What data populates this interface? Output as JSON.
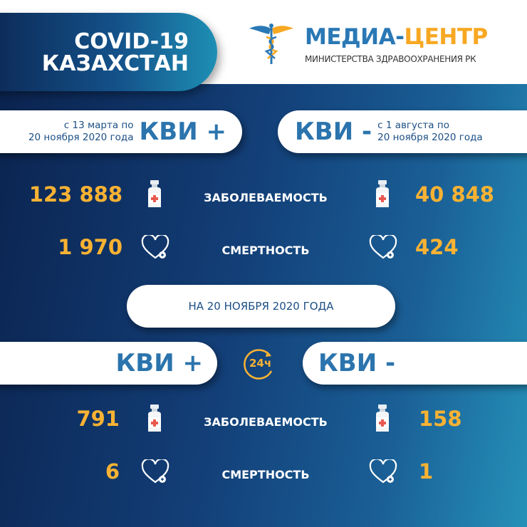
{
  "header": {
    "title_line1": "COVID-19",
    "title_line2": "КАЗАХСТАН",
    "logo_part1": "МЕДИА-",
    "logo_part2": "ЦЕНТР",
    "logo_sub": "МИНИСТЕРСТВА ЗДРАВООХРАНЕНИЯ РК",
    "logo_icon": "caduceus-icon"
  },
  "cumulative": {
    "left": {
      "label": "КВИ +",
      "date_line1": "с 13 марта по",
      "date_line2": "20 ноября 2020 года",
      "cases": "123 888",
      "deaths": "1 970"
    },
    "right": {
      "label": "КВИ -",
      "date_line1": "с 1 августа  по",
      "date_line2": "20 ноября 2020 года",
      "cases": "40 848",
      "deaths": "424"
    },
    "cases_label": "ЗАБОЛЕВАЕМОСТЬ",
    "deaths_label": "СМЕРТНОСТЬ"
  },
  "daily": {
    "date_label": "НА 20 НОЯБРЯ  2020 ГОДА",
    "badge": "24ч",
    "left": {
      "label": "КВИ +",
      "cases": "791",
      "deaths": "6"
    },
    "right": {
      "label": "КВИ -",
      "cases": "158",
      "deaths": "1"
    },
    "cases_label": "ЗАБОЛЕВАЕМОСТЬ",
    "deaths_label": "СМЕРТНОСТЬ"
  },
  "colors": {
    "accent": "#f9b233",
    "blue": "#2b74ad",
    "navy": "#0b2450",
    "teal": "#2591b8"
  }
}
